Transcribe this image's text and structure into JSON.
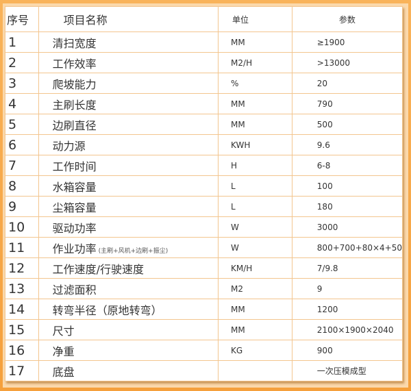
{
  "header": {
    "no": "序号",
    "name": "项目名称",
    "unit": "单位",
    "param": "参数"
  },
  "rows": [
    {
      "no": "1",
      "name": "清扫宽度",
      "unit": "MM",
      "param": "≥1900"
    },
    {
      "no": "2",
      "name": "工作效率",
      "unit": "M2/H",
      "param": ">13000"
    },
    {
      "no": "3",
      "name": "爬坡能力",
      "unit": "%",
      "param": "20"
    },
    {
      "no": "4",
      "name": "主刷长度",
      "unit": "MM",
      "param": "790"
    },
    {
      "no": "5",
      "name": "边刷直径",
      "unit": "MM",
      "param": "500"
    },
    {
      "no": "6",
      "name": "动力源",
      "unit": "KWH",
      "param": "9.6"
    },
    {
      "no": "7",
      "name": "工作时间",
      "unit": "H",
      "param": "6-8"
    },
    {
      "no": "8",
      "name": "水箱容量",
      "unit": "L",
      "param": "100"
    },
    {
      "no": "9",
      "name": "尘箱容量",
      "unit": "L",
      "param": "180"
    },
    {
      "no": "10",
      "name": "驱动功率",
      "unit": "W",
      "param": "3000"
    },
    {
      "no": "11",
      "name": "作业功率",
      "note": "(主刷+风机+边刷+振尘)",
      "unit": "W",
      "param": "800+700+80×4+50"
    },
    {
      "no": "12",
      "name": "工作速度/行驶速度",
      "unit": "KM/H",
      "param": "7/9.8"
    },
    {
      "no": "13",
      "name": "过滤面积",
      "unit": "M2",
      "param": "9"
    },
    {
      "no": "14",
      "name": "转弯半径（原地转弯）",
      "unit": "MM",
      "param": "1200"
    },
    {
      "no": "15",
      "name": "尺寸",
      "unit": "MM",
      "param": "2100×1900×2040"
    },
    {
      "no": "16",
      "name": "净重",
      "unit": "KG",
      "param": "900"
    },
    {
      "no": "17",
      "name": "底盘",
      "unit": "",
      "param": "一次压模成型"
    }
  ]
}
